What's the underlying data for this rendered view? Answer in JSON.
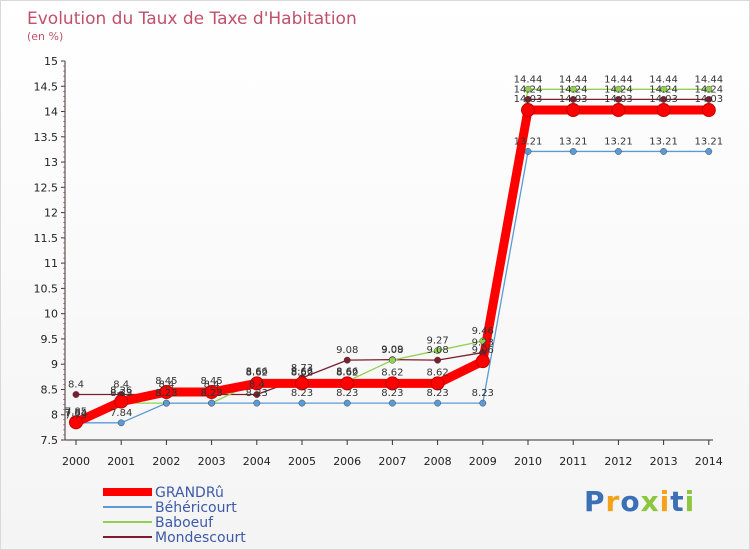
{
  "chart_data": {
    "type": "line",
    "title": "Evolution du Taux de Taxe d'Habitation",
    "subtitle": "(en %)",
    "x": [
      2000,
      2001,
      2002,
      2003,
      2004,
      2005,
      2006,
      2007,
      2008,
      2009,
      2010,
      2011,
      2012,
      2013,
      2014
    ],
    "ylim": [
      7.5,
      15
    ],
    "yticks": [
      "7.5",
      "8",
      "8.5",
      "9",
      "9.5",
      "10",
      "10.5",
      "11",
      "11.5",
      "12",
      "12.5",
      "13",
      "13.5",
      "14",
      "14.5",
      "15"
    ],
    "grid": false,
    "legend_position": "bottom-left",
    "series": [
      {
        "name": "GRANDRû",
        "color": "#ff0000",
        "values": [
          7.85,
          8.26,
          8.45,
          8.45,
          8.62,
          8.62,
          8.62,
          8.62,
          8.62,
          9.06,
          14.03,
          14.03,
          14.03,
          14.03,
          14.03
        ],
        "labels": [
          "7.85",
          "8.26",
          "8.45",
          "8.45",
          "8.62",
          "8.62",
          "8.62",
          "8.62",
          "8.62",
          "9.06",
          "14.03",
          "14.03",
          "14.03",
          "14.03",
          "14.03"
        ]
      },
      {
        "name": "Béhéricourt",
        "color": "#5b9bd5",
        "values": [
          7.84,
          7.84,
          8.23,
          8.23,
          8.23,
          8.23,
          8.23,
          8.23,
          8.23,
          8.23,
          13.21,
          13.21,
          13.21,
          13.21,
          13.21
        ],
        "labels": [
          "7.84",
          "7.84",
          "8.23",
          "8.23",
          "8.23",
          "8.23",
          "8.23",
          "8.23",
          "8.23",
          "8.23",
          "13.21",
          "13.21",
          "13.21",
          "13.21",
          "13.21"
        ]
      },
      {
        "name": "Baboeuf",
        "color": "#92d050",
        "values": [
          7.79,
          8.23,
          8.23,
          8.23,
          8.66,
          8.66,
          8.66,
          9.08,
          9.27,
          9.46,
          14.44,
          14.44,
          14.44,
          14.44,
          14.44
        ],
        "labels": [
          "7.79",
          "8.23",
          "8.23",
          "8.23",
          "8.66",
          "8.66",
          "8.66",
          "9.08",
          "9.27",
          "9.46",
          "14.44",
          "14.44",
          "14.44",
          "14.44",
          "14.44"
        ]
      },
      {
        "name": "Mondescourt",
        "color": "#7b1e2e",
        "values": [
          8.4,
          8.4,
          8.4,
          8.4,
          8.4,
          8.73,
          9.08,
          9.09,
          9.08,
          9.23,
          14.24,
          14.24,
          14.24,
          14.24,
          14.24
        ],
        "labels": [
          "8.4",
          "8.4",
          "8.4",
          "8.4",
          "8.4",
          "8.73",
          "9.08",
          "9.09",
          "9.08",
          "9.23",
          "14.24",
          "14.24",
          "14.24",
          "14.24",
          "14.24"
        ]
      }
    ]
  },
  "logo": {
    "text": "Proxiti",
    "letters": [
      "P",
      "r",
      "o",
      "x",
      "i",
      "t",
      "i"
    ],
    "colors": [
      "#3b6fb6",
      "#f2a31a",
      "#3b6fb6",
      "#8dc63f",
      "#f2a31a",
      "#3b6fb6",
      "#8dc63f"
    ]
  }
}
